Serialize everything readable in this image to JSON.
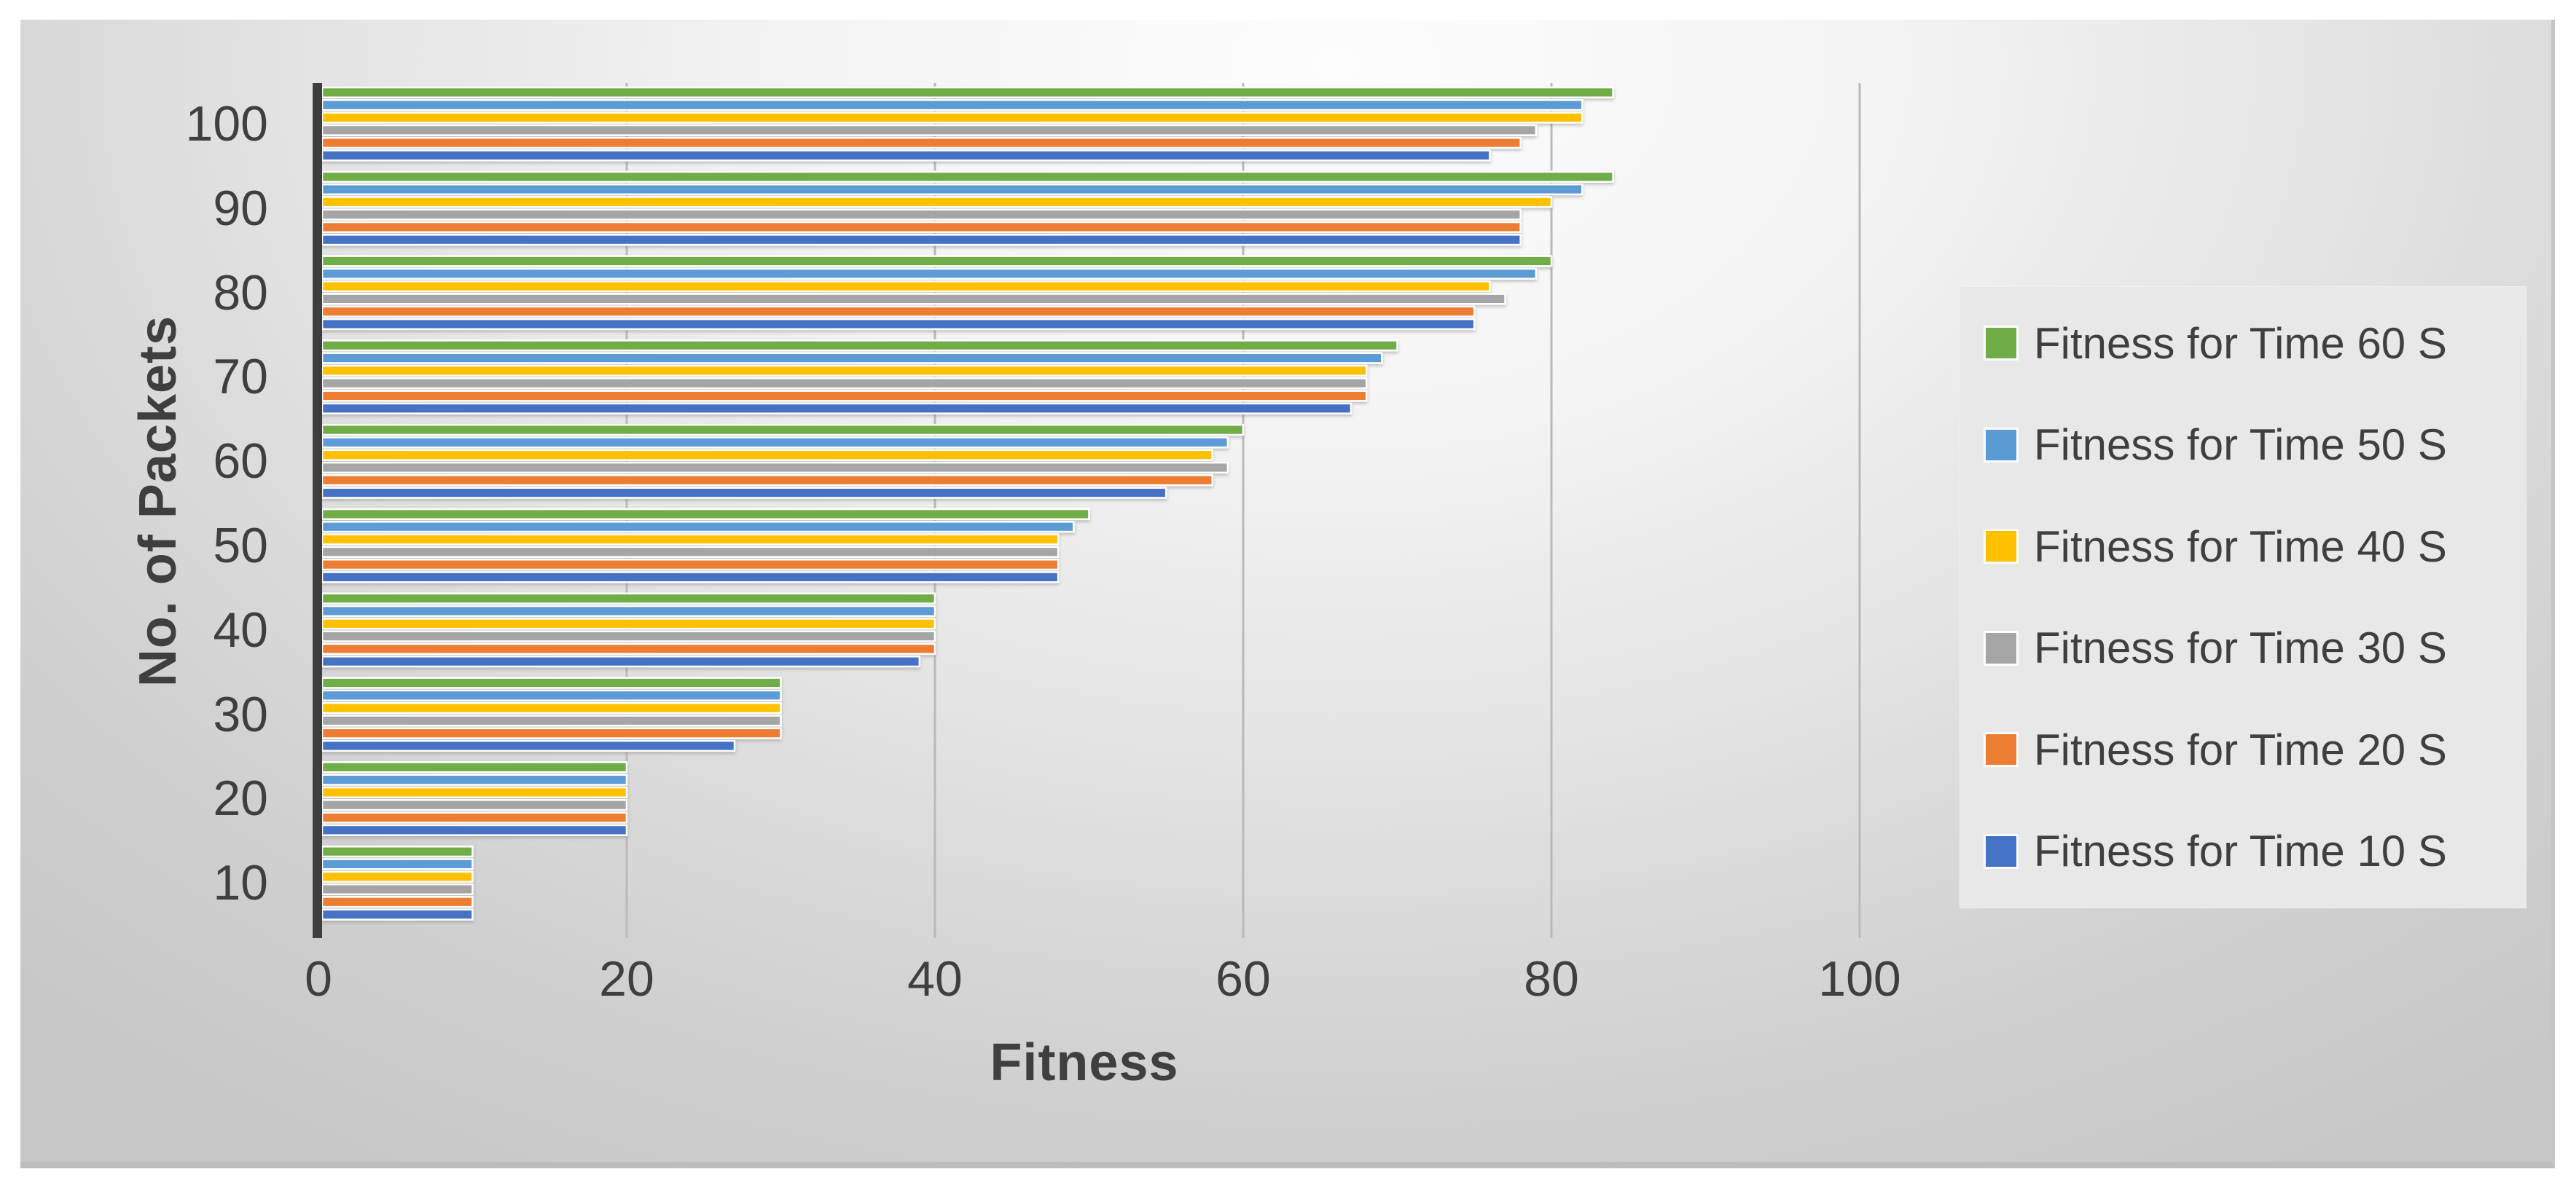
{
  "chart_data": {
    "type": "bar",
    "orientation": "horizontal",
    "title": "",
    "xlabel": "Fitness",
    "ylabel": "No. of Packets",
    "xlim": [
      0,
      100
    ],
    "x_ticks": [
      0,
      20,
      40,
      60,
      80,
      100
    ],
    "grid": true,
    "legend_position": "right",
    "categories": [
      10,
      20,
      30,
      40,
      50,
      60,
      70,
      80,
      90,
      100
    ],
    "series": [
      {
        "name": "Fitness for Time 60 S",
        "color": "#70AD47",
        "values": [
          10,
          20,
          30,
          40,
          50,
          60,
          70,
          80,
          84,
          84
        ]
      },
      {
        "name": "Fitness for Time 50 S",
        "color": "#5B9BD5",
        "values": [
          10,
          20,
          30,
          40,
          49,
          59,
          69,
          79,
          82,
          82
        ]
      },
      {
        "name": "Fitness for Time 40 S",
        "color": "#FFC000",
        "values": [
          10,
          20,
          30,
          40,
          48,
          58,
          68,
          76,
          80,
          82
        ]
      },
      {
        "name": "Fitness for Time 30 S",
        "color": "#A5A5A5",
        "values": [
          10,
          20,
          30,
          40,
          48,
          59,
          68,
          77,
          78,
          79
        ]
      },
      {
        "name": "Fitness for Time 20 S",
        "color": "#ED7D31",
        "values": [
          10,
          20,
          30,
          40,
          48,
          58,
          68,
          75,
          78,
          78
        ]
      },
      {
        "name": "Fitness for Time 10 S",
        "color": "#4472C4",
        "values": [
          10,
          20,
          27,
          39,
          48,
          55,
          67,
          75,
          78,
          76
        ]
      }
    ],
    "axis_color": "#3E3E3E",
    "gridline_color": "#B9B9B9",
    "text_color": "#3F3F3F"
  }
}
